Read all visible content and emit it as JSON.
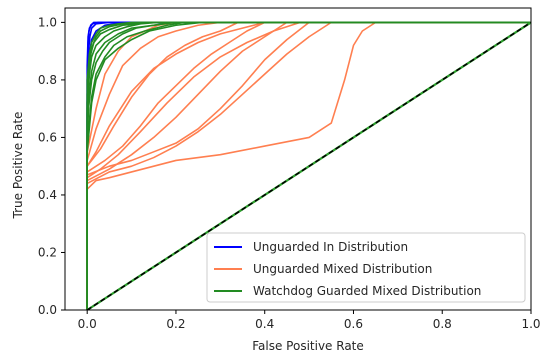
{
  "chart_data": {
    "type": "line",
    "title": "",
    "xlabel": "False Positive Rate",
    "ylabel": "True Positive Rate",
    "xlim": [
      -0.05,
      1.0
    ],
    "ylim": [
      0.0,
      1.05
    ],
    "xticks": [
      0.0,
      0.2,
      0.4,
      0.6,
      0.8,
      1.0
    ],
    "yticks": [
      0.0,
      0.2,
      0.4,
      0.6,
      0.8,
      1.0
    ],
    "xtick_labels": [
      "0.0",
      "0.2",
      "0.4",
      "0.6",
      "0.8",
      "1.0"
    ],
    "ytick_labels": [
      "0.0",
      "0.2",
      "0.4",
      "0.6",
      "0.8",
      "1.0"
    ],
    "grid": false,
    "legend_position": "lower-right",
    "legend": [
      {
        "label": "Unguarded In Distribution",
        "color": "#0000ff"
      },
      {
        "label": "Unguarded Mixed Distribution",
        "color": "#ff7f50"
      },
      {
        "label": "Watchdog Guarded Mixed Distribution",
        "color": "#228b22"
      }
    ],
    "diagonal": {
      "x": [
        0.0,
        1.0
      ],
      "y": [
        0.0,
        1.0
      ],
      "colors": [
        "#2ca02c",
        "#000000"
      ],
      "style": "dashed"
    },
    "series": [
      {
        "group": "Unguarded In Distribution",
        "color": "#0000ff",
        "x": [
          0.0,
          0.0,
          0.003,
          0.006,
          0.01,
          0.02,
          0.05,
          0.1,
          0.2,
          1.0
        ],
        "y": [
          0.0,
          0.72,
          0.9,
          0.95,
          0.98,
          0.995,
          1.0,
          1.0,
          1.0,
          1.0
        ]
      },
      {
        "group": "Unguarded In Distribution",
        "color": "#0000ff",
        "x": [
          0.0,
          0.0,
          0.002,
          0.004,
          0.008,
          0.015,
          0.03,
          1.0
        ],
        "y": [
          0.0,
          0.8,
          0.93,
          0.97,
          0.99,
          1.0,
          1.0,
          1.0
        ]
      },
      {
        "group": "Unguarded In Distribution",
        "color": "#0000ff",
        "x": [
          0.0,
          0.0,
          0.004,
          0.01,
          0.02,
          0.04,
          0.08,
          1.0
        ],
        "y": [
          0.0,
          0.68,
          0.88,
          0.94,
          0.97,
          0.99,
          1.0,
          1.0
        ]
      },
      {
        "group": "Unguarded In Distribution",
        "color": "#0000ff",
        "x": [
          0.0,
          0.0,
          0.002,
          0.005,
          0.012,
          0.025,
          1.0
        ],
        "y": [
          0.0,
          0.85,
          0.95,
          0.98,
          0.995,
          1.0,
          1.0
        ]
      },
      {
        "group": "Unguarded Mixed Distribution",
        "color": "#ff7f50",
        "x": [
          0.0,
          0.0,
          0.02,
          0.05,
          0.1,
          0.15,
          0.2,
          0.25,
          0.3,
          0.35,
          0.4,
          1.0
        ],
        "y": [
          0.0,
          0.5,
          0.55,
          0.64,
          0.76,
          0.84,
          0.89,
          0.93,
          0.96,
          0.98,
          1.0,
          1.0
        ]
      },
      {
        "group": "Unguarded Mixed Distribution",
        "color": "#ff7f50",
        "x": [
          0.0,
          0.0,
          0.02,
          0.05,
          0.08,
          0.12,
          0.16,
          0.2,
          0.25,
          0.3,
          1.0
        ],
        "y": [
          0.0,
          0.52,
          0.63,
          0.75,
          0.85,
          0.91,
          0.95,
          0.97,
          0.99,
          1.0,
          1.0
        ]
      },
      {
        "group": "Unguarded Mixed Distribution",
        "color": "#ff7f50",
        "x": [
          0.0,
          0.0,
          0.02,
          0.04,
          0.07,
          0.1,
          0.13,
          0.16,
          0.2,
          1.0
        ],
        "y": [
          0.0,
          0.55,
          0.7,
          0.82,
          0.9,
          0.95,
          0.97,
          0.99,
          1.0,
          1.0
        ]
      },
      {
        "group": "Unguarded Mixed Distribution",
        "color": "#ff7f50",
        "x": [
          0.0,
          0.0,
          0.03,
          0.07,
          0.12,
          0.18,
          0.24,
          0.3,
          0.36,
          0.42,
          0.48,
          1.0
        ],
        "y": [
          0.0,
          0.46,
          0.49,
          0.54,
          0.62,
          0.72,
          0.81,
          0.88,
          0.93,
          0.97,
          1.0,
          1.0
        ]
      },
      {
        "group": "Unguarded Mixed Distribution",
        "color": "#ff7f50",
        "x": [
          0.0,
          0.0,
          0.05,
          0.1,
          0.15,
          0.2,
          0.25,
          0.3,
          0.35,
          0.4,
          0.45,
          1.0
        ],
        "y": [
          0.0,
          0.45,
          0.49,
          0.54,
          0.6,
          0.67,
          0.75,
          0.83,
          0.9,
          0.95,
          1.0,
          1.0
        ]
      },
      {
        "group": "Unguarded Mixed Distribution",
        "color": "#ff7f50",
        "x": [
          0.0,
          0.0,
          0.05,
          0.1,
          0.15,
          0.2,
          0.25,
          0.3,
          0.35,
          0.4,
          0.45,
          0.5,
          1.0
        ],
        "y": [
          0.0,
          0.47,
          0.5,
          0.52,
          0.55,
          0.58,
          0.63,
          0.7,
          0.78,
          0.87,
          0.94,
          1.0,
          1.0
        ]
      },
      {
        "group": "Unguarded Mixed Distribution",
        "color": "#ff7f50",
        "x": [
          0.0,
          0.0,
          0.04,
          0.08,
          0.12,
          0.16,
          0.2,
          0.24,
          0.28,
          0.32,
          0.36,
          0.4,
          1.0
        ],
        "y": [
          0.0,
          0.48,
          0.52,
          0.57,
          0.64,
          0.72,
          0.78,
          0.84,
          0.89,
          0.93,
          0.97,
          1.0,
          1.0
        ]
      },
      {
        "group": "Unguarded Mixed Distribution",
        "color": "#ff7f50",
        "x": [
          0.0,
          0.0,
          0.03,
          0.06,
          0.1,
          0.14,
          0.18,
          0.22,
          0.26,
          0.3,
          0.34,
          1.0
        ],
        "y": [
          0.0,
          0.5,
          0.56,
          0.64,
          0.74,
          0.82,
          0.88,
          0.92,
          0.95,
          0.97,
          1.0,
          1.0
        ]
      },
      {
        "group": "Unguarded Mixed Distribution",
        "color": "#ff7f50",
        "x": [
          0.0,
          0.0,
          0.05,
          0.1,
          0.15,
          0.2,
          0.25,
          0.3,
          0.35,
          0.4,
          0.45,
          0.5,
          0.55,
          1.0
        ],
        "y": [
          0.0,
          0.44,
          0.48,
          0.5,
          0.53,
          0.57,
          0.62,
          0.68,
          0.75,
          0.82,
          0.89,
          0.95,
          1.0,
          1.0
        ]
      },
      {
        "group": "Unguarded Mixed Distribution",
        "color": "#ff7f50",
        "x": [
          0.0,
          0.0,
          0.02,
          0.05,
          0.1,
          0.15,
          0.2,
          0.3,
          0.4,
          0.5,
          0.55,
          0.58,
          0.6,
          0.62,
          0.65,
          1.0
        ],
        "y": [
          0.0,
          0.42,
          0.45,
          0.46,
          0.48,
          0.5,
          0.52,
          0.54,
          0.57,
          0.6,
          0.65,
          0.8,
          0.92,
          0.97,
          1.0,
          1.0
        ]
      },
      {
        "group": "Watchdog Guarded Mixed Distribution",
        "color": "#228b22",
        "x": [
          0.0,
          0.0,
          0.005,
          0.01,
          0.02,
          0.04,
          0.07,
          0.1,
          0.15,
          0.2,
          1.0
        ],
        "y": [
          0.0,
          0.6,
          0.76,
          0.83,
          0.89,
          0.93,
          0.96,
          0.98,
          0.99,
          1.0,
          1.0
        ]
      },
      {
        "group": "Watchdog Guarded Mixed Distribution",
        "color": "#228b22",
        "x": [
          0.0,
          0.0,
          0.005,
          0.01,
          0.02,
          0.04,
          0.06,
          0.09,
          0.12,
          0.16,
          1.0
        ],
        "y": [
          0.0,
          0.7,
          0.82,
          0.88,
          0.92,
          0.95,
          0.97,
          0.985,
          0.995,
          1.0,
          1.0
        ]
      },
      {
        "group": "Watchdog Guarded Mixed Distribution",
        "color": "#228b22",
        "x": [
          0.0,
          0.0,
          0.005,
          0.01,
          0.02,
          0.03,
          0.05,
          0.08,
          0.12,
          1.0
        ],
        "y": [
          0.0,
          0.75,
          0.86,
          0.91,
          0.95,
          0.97,
          0.985,
          0.995,
          1.0,
          1.0
        ]
      },
      {
        "group": "Watchdog Guarded Mixed Distribution",
        "color": "#228b22",
        "x": [
          0.0,
          0.0,
          0.01,
          0.02,
          0.04,
          0.06,
          0.09,
          0.13,
          0.18,
          0.22,
          1.0
        ],
        "y": [
          0.0,
          0.58,
          0.74,
          0.82,
          0.88,
          0.92,
          0.95,
          0.97,
          0.99,
          1.0,
          1.0
        ]
      },
      {
        "group": "Watchdog Guarded Mixed Distribution",
        "color": "#228b22",
        "x": [
          0.0,
          0.0,
          0.005,
          0.01,
          0.02,
          0.03,
          0.05,
          0.07,
          0.1,
          1.0
        ],
        "y": [
          0.0,
          0.8,
          0.89,
          0.93,
          0.96,
          0.98,
          0.99,
          0.995,
          1.0,
          1.0
        ]
      },
      {
        "group": "Watchdog Guarded Mixed Distribution",
        "color": "#228b22",
        "x": [
          0.0,
          0.0,
          0.01,
          0.02,
          0.035,
          0.05,
          0.08,
          0.11,
          0.15,
          0.19,
          1.0
        ],
        "y": [
          0.0,
          0.66,
          0.8,
          0.86,
          0.9,
          0.93,
          0.96,
          0.98,
          0.99,
          1.0,
          1.0
        ]
      },
      {
        "group": "Watchdog Guarded Mixed Distribution",
        "color": "#228b22",
        "x": [
          0.0,
          0.0,
          0.004,
          0.008,
          0.015,
          0.03,
          0.05,
          0.08,
          0.11,
          0.14,
          1.0
        ],
        "y": [
          0.0,
          0.72,
          0.84,
          0.89,
          0.93,
          0.96,
          0.975,
          0.99,
          0.995,
          1.0,
          1.0
        ]
      },
      {
        "group": "Watchdog Guarded Mixed Distribution",
        "color": "#228b22",
        "x": [
          0.0,
          0.0,
          0.01,
          0.02,
          0.04,
          0.07,
          0.1,
          0.14,
          0.2,
          0.26,
          1.0
        ],
        "y": [
          0.0,
          0.55,
          0.72,
          0.8,
          0.87,
          0.91,
          0.94,
          0.97,
          0.99,
          1.0,
          1.0
        ]
      }
    ]
  }
}
